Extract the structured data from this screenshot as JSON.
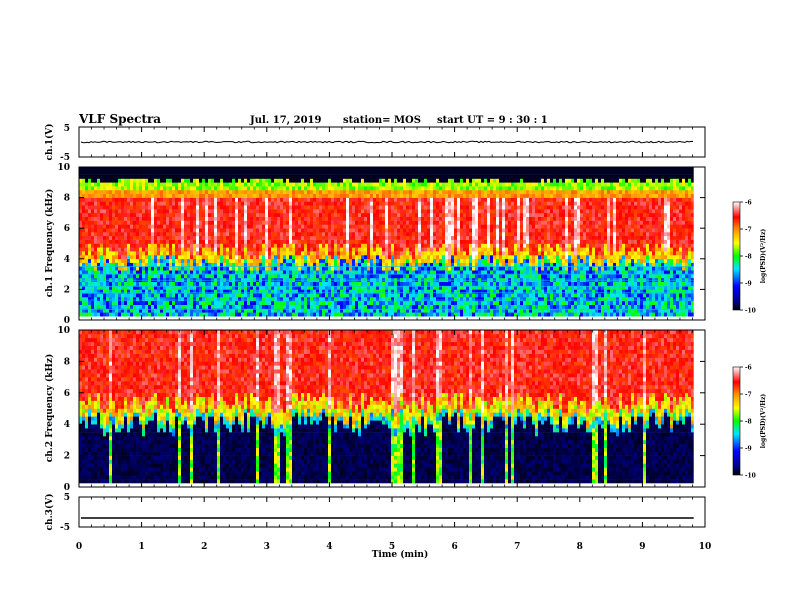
{
  "header": {
    "title": "VLF Spectra",
    "date": "Jul. 17, 2019",
    "station": "station= MOS",
    "start": "start UT =  9 : 30 : 1"
  },
  "chart_data": {
    "type": "heatmap",
    "xlabel": "Time (min)",
    "xlim": [
      0,
      10
    ],
    "x_ticks": [
      "0",
      "1",
      "2",
      "3",
      "4",
      "5",
      "6",
      "7",
      "8",
      "9",
      "10"
    ],
    "data_end_min": 9.82,
    "panels": [
      {
        "kind": "waveform",
        "ylabel": "ch.1(V)",
        "ylim": [
          -5,
          5
        ],
        "y_ticks": [
          "5",
          "-5"
        ],
        "level": 0
      },
      {
        "kind": "spectrogram",
        "ylabel": "ch.1 Frequency (kHz)",
        "ylim": [
          0,
          10
        ],
        "y_ticks": [
          "0",
          "2",
          "4",
          "6",
          "8",
          "10"
        ],
        "description": "bright red band roughly 4.5-8.5 kHz, noisy green/blue below 4 kHz with horizontal lines, black above 9 kHz",
        "upper_cutoff_khz": 9.0,
        "strong_band_khz": [
          4.5,
          8.0
        ],
        "colorbar": {
          "label": "log(PSD)(V²/Hz)",
          "range": [
            -10,
            -6
          ],
          "ticks": [
            "-6",
            "-7",
            "-8",
            "-9",
            "-10"
          ]
        }
      },
      {
        "kind": "spectrogram",
        "ylabel": "ch.2 Frequency (kHz)",
        "ylim": [
          0,
          10
        ],
        "y_ticks": [
          "0",
          "2",
          "4",
          "6",
          "8",
          "10"
        ],
        "description": "red/orange above about 4.5 kHz up to 10 kHz, black below about 3.5 kHz with vertical sferic streaks",
        "lower_cutoff_khz": 4.0,
        "colorbar": {
          "label": "log(PSD)(V²/Hz)",
          "range": [
            -10,
            -6
          ],
          "ticks": [
            "-6",
            "-7",
            "-8",
            "-9",
            "-10"
          ]
        }
      },
      {
        "kind": "waveform",
        "ylabel": "ch.3(V)",
        "ylim": [
          -5,
          5
        ],
        "y_ticks": [
          "5",
          "-5"
        ],
        "level": -2
      }
    ]
  }
}
